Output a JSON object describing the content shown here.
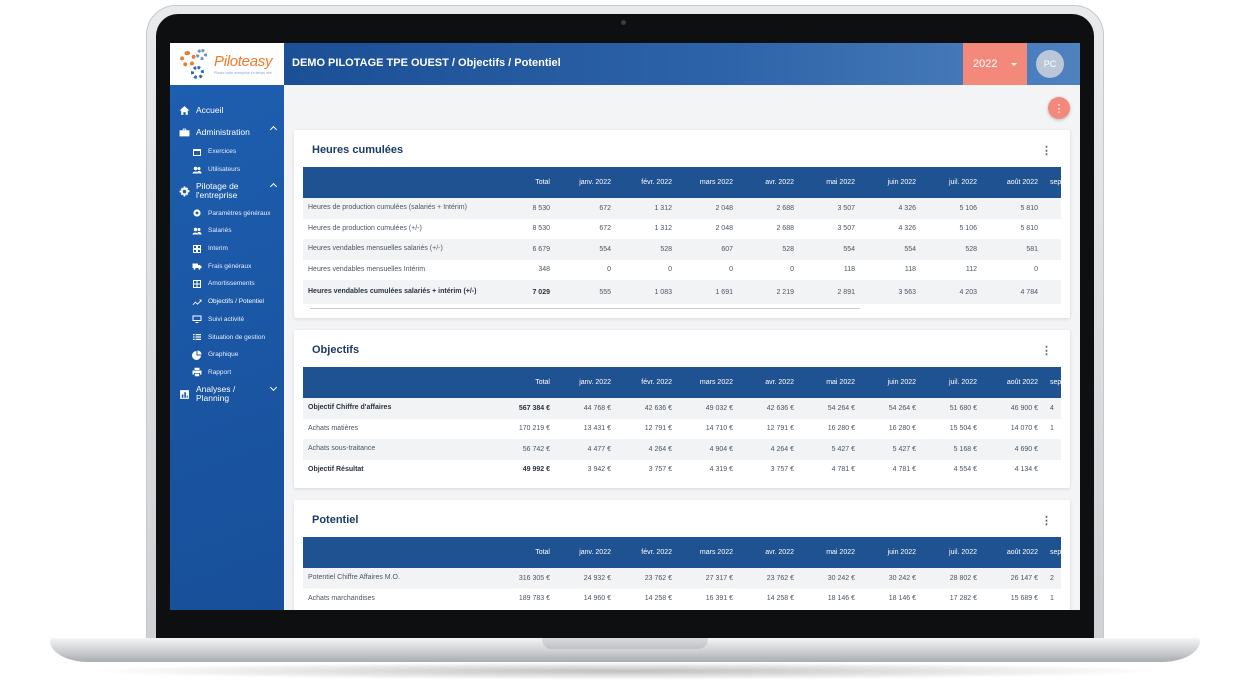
{
  "app": {
    "brand": "Piloteasy",
    "brand_tagline": "Pilotez votre entreprise en temps réel",
    "breadcrumb": "DEMO PILOTAGE TPE OUEST / Objectifs / Potentiel",
    "year": "2022",
    "avatar_initials": "PC",
    "fab_icon": "⋮"
  },
  "sidebar": {
    "accueil": "Accueil",
    "administration": "Administration",
    "exercices": "Exercices",
    "utilisateurs": "Utilisateurs",
    "pilotage_line1": "Pilotage de",
    "pilotage_line2": "l'entreprise",
    "items": [
      "Paramètres généraux",
      "Salariés",
      "Interim",
      "Frais généraux",
      "Amortissements",
      "Objectifs / Potentiel",
      "Suivi activité",
      "Situation de gestion",
      "Graphique",
      "Rapport"
    ],
    "analyses_line1": "Analyses /",
    "analyses_line2": "Planning"
  },
  "columns": [
    "Total",
    "janv. 2022",
    "févr. 2022",
    "mars 2022",
    "avr. 2022",
    "mai 2022",
    "juin 2022",
    "juil. 2022",
    "août 2022",
    "sept"
  ],
  "heures": {
    "title": "Heures cumulées",
    "rows": [
      {
        "label": "Heures de production cumulées (salariés + Intérim)",
        "v": [
          "8 530",
          "672",
          "1 312",
          "2 048",
          "2 688",
          "3 507",
          "4 326",
          "5 106",
          "5 810",
          ""
        ]
      },
      {
        "label": "Heures de production cumulées (+/-)",
        "v": [
          "8 530",
          "672",
          "1 312",
          "2 048",
          "2 688",
          "3 507",
          "4 326",
          "5 106",
          "5 810",
          ""
        ]
      },
      {
        "label": "Heures vendables mensuelles salariés (+/-)",
        "v": [
          "6 679",
          "554",
          "528",
          "607",
          "528",
          "554",
          "554",
          "528",
          "581",
          ""
        ]
      },
      {
        "label": "Heures vendables mensuelles Intérim",
        "v": [
          "348",
          "0",
          "0",
          "0",
          "0",
          "118",
          "118",
          "112",
          "0",
          ""
        ]
      },
      {
        "label": "Heures vendables cumulées salariés + intérim (+/-)",
        "v": [
          "7 029",
          "555",
          "1 083",
          "1 691",
          "2 219",
          "2 891",
          "3 563",
          "4 203",
          "4 784",
          ""
        ]
      }
    ]
  },
  "objectifs": {
    "title": "Objectifs",
    "rows": [
      {
        "label": "Objectif Chiffre d'affaires",
        "v": [
          "567 384 €",
          "44 768 €",
          "42 636 €",
          "49 032 €",
          "42 636 €",
          "54 264 €",
          "54 264 €",
          "51 680 €",
          "46 900 €",
          "4"
        ]
      },
      {
        "label": "Achats matières",
        "v": [
          "170 219 €",
          "13 431 €",
          "12 791 €",
          "14 710 €",
          "12 791 €",
          "16 280 €",
          "16 280 €",
          "15 504 €",
          "14 070 €",
          "1"
        ]
      },
      {
        "label": "Achats sous-traitance",
        "v": [
          "56 742 €",
          "4 477 €",
          "4 264 €",
          "4 904 €",
          "4 264 €",
          "5 427 €",
          "5 427 €",
          "5 168 €",
          "4 690 €",
          ""
        ]
      },
      {
        "label": "Objectif Résultat",
        "v": [
          "49 992 €",
          "3 942 €",
          "3 757 €",
          "4 319 €",
          "3 757 €",
          "4 781 €",
          "4 781 €",
          "4 554 €",
          "4 134 €",
          ""
        ]
      }
    ]
  },
  "potentiel": {
    "title": "Potentiel",
    "rows": [
      {
        "label": "Potentiel Chiffre Affaires M.O.",
        "v": [
          "316 305 €",
          "24 932 €",
          "23 762 €",
          "27 317 €",
          "23 762 €",
          "30 242 €",
          "30 242 €",
          "28 802 €",
          "26 147 €",
          "2"
        ]
      },
      {
        "label": "Achats marchandises",
        "v": [
          "189 783 €",
          "14 960 €",
          "14 258 €",
          "16 391 €",
          "14 258 €",
          "18 146 €",
          "18 146 €",
          "17 282 €",
          "15 689 €",
          "1"
        ]
      }
    ]
  }
}
